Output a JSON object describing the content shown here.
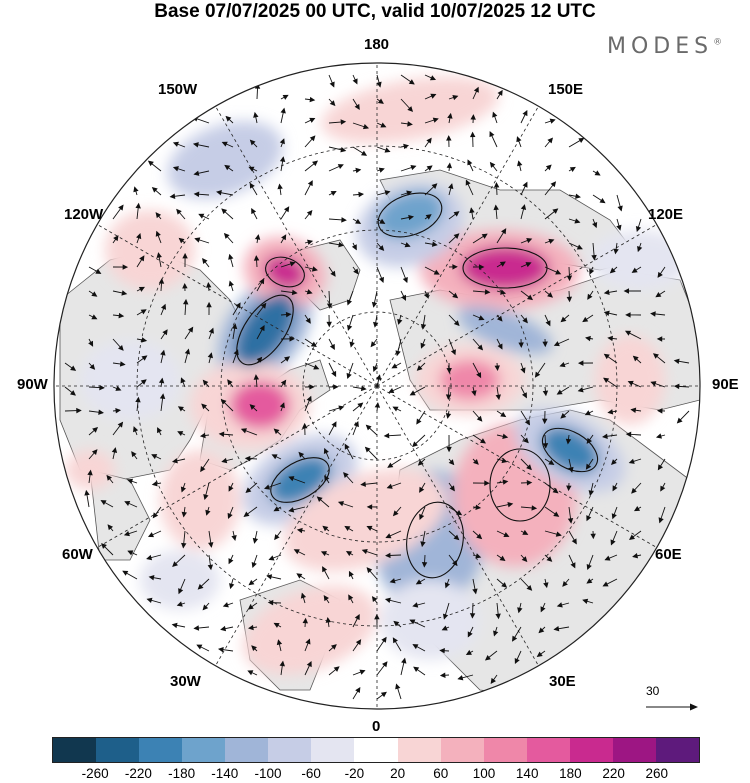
{
  "title": "Base 07/07/2025 00 UTC, valid 10/07/2025 12 UTC",
  "brand": "MODES",
  "brand_mark": "®",
  "labels": {
    "lon_180": "180",
    "lon_150w": "150W",
    "lon_150e": "150E",
    "lon_120w": "120W",
    "lon_120e": "120E",
    "lon_90w": "90W",
    "lon_90e": "90E",
    "lon_60w": "60W",
    "lon_60e": "60E",
    "lon_30w": "30W",
    "lon_30e": "30E",
    "lon_0": "0"
  },
  "reference_vector": "30",
  "colorbar": {
    "colors": [
      "#11374f",
      "#1e5f8a",
      "#3c82b4",
      "#6ea3cc",
      "#a0b5d8",
      "#c6cde6",
      "#e4e5f1",
      "#ffffff",
      "#f8d5d5",
      "#f4b1bd",
      "#ef87a9",
      "#e45a9e",
      "#c92a8f",
      "#9d1683",
      "#5e1a7c"
    ],
    "ticks": [
      "-260",
      "-220",
      "-180",
      "-140",
      "-100",
      "-60",
      "-20",
      "20",
      "60",
      "100",
      "140",
      "180",
      "220",
      "260"
    ]
  }
}
